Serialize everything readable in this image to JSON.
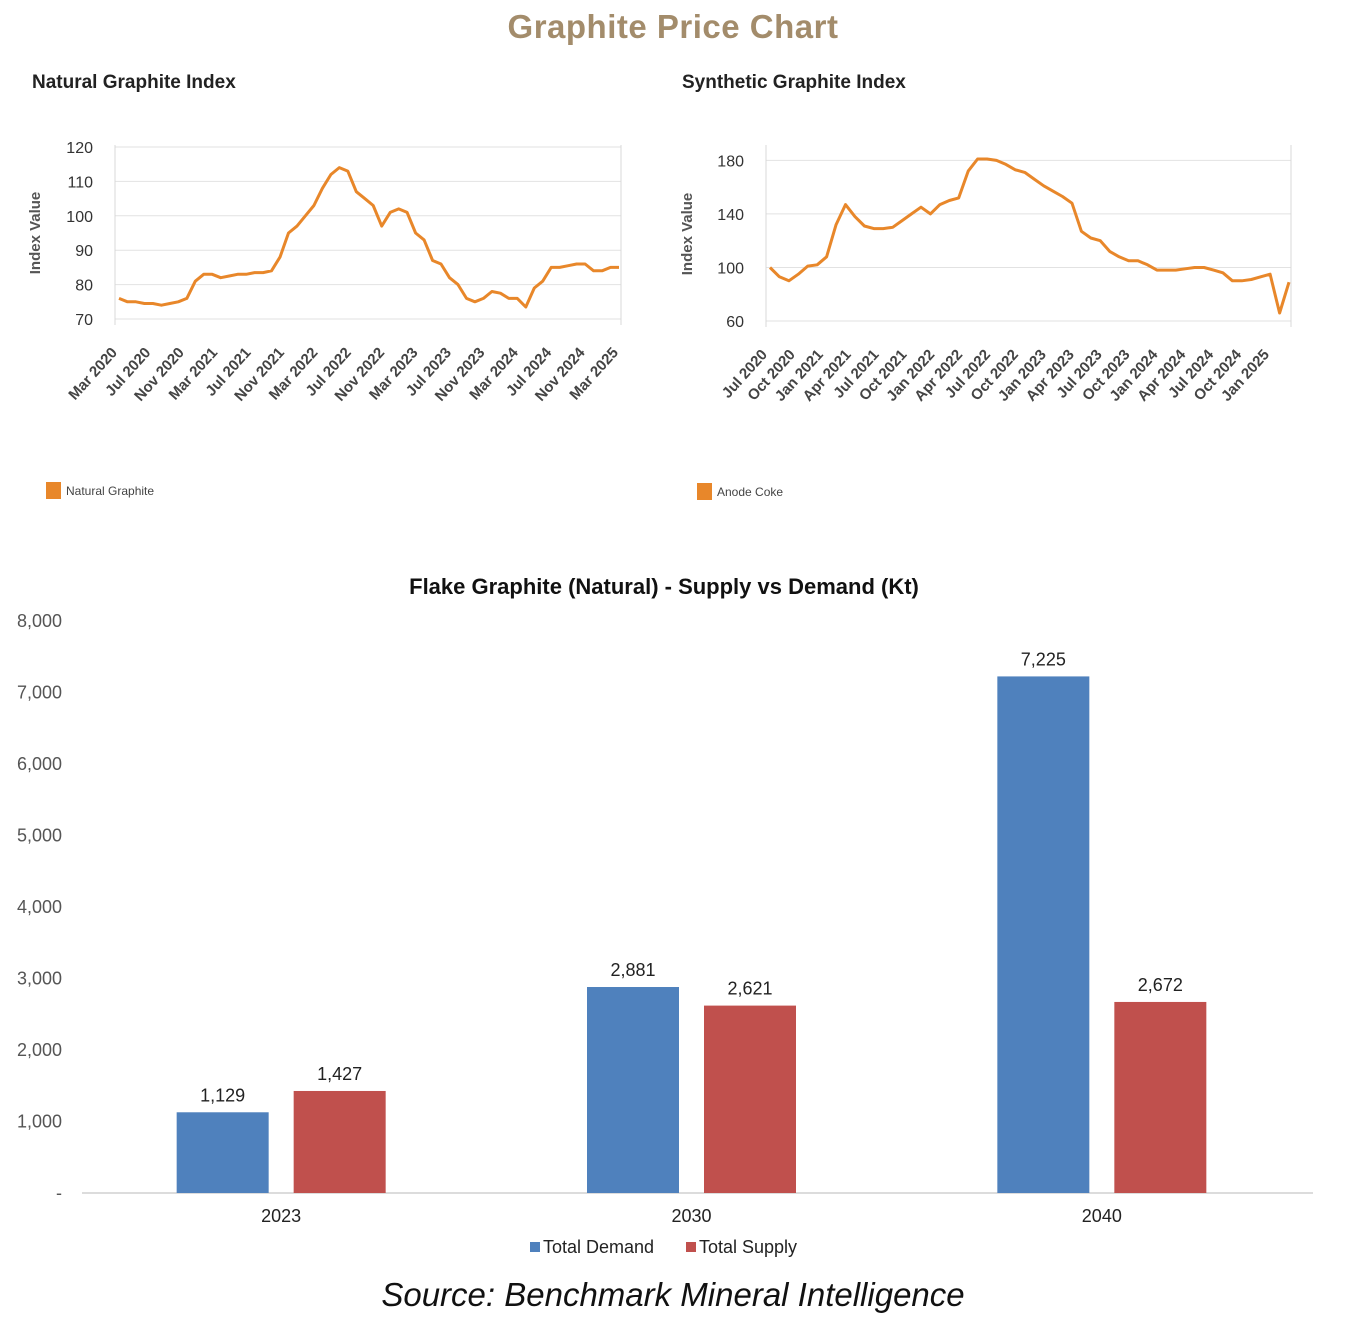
{
  "page": {
    "title": "Graphite Price Chart",
    "source": "Source: Benchmark Mineral Intelligence"
  },
  "colors": {
    "title": "#a38c6b",
    "line": "#e8872a",
    "demand": "#4f81bd",
    "supply": "#c0504d",
    "grid": "#e2e2e2"
  },
  "chart_data": [
    {
      "type": "line",
      "title": "Natural Graphite Index",
      "ylabel": "Index Value",
      "ylim": [
        70,
        120
      ],
      "yticks": [
        120,
        110,
        100,
        90,
        80,
        70
      ],
      "tick_labels": [
        "Mar 2020",
        "Jul 2020",
        "Nov 2020",
        "Mar 2021",
        "Jul 2021",
        "Nov 2021",
        "Mar 2022",
        "Jul 2022",
        "Nov 2022",
        "Mar 2023",
        "Jul 2023",
        "Nov 2023",
        "Mar 2024",
        "Jul 2024",
        "Nov 2024",
        "Mar 2025"
      ],
      "series": [
        {
          "name": "Natural Graphite",
          "values": [
            76,
            75,
            75,
            74.5,
            74.5,
            74,
            74.5,
            75,
            76,
            81,
            83,
            83,
            82,
            82.5,
            83,
            83,
            83.5,
            83.5,
            84,
            88,
            95,
            97,
            100,
            103,
            108,
            112,
            114,
            113,
            107,
            105,
            103,
            97,
            101,
            102,
            101,
            95,
            93,
            87,
            86,
            82,
            80,
            76,
            75,
            76,
            78,
            77.5,
            76,
            76,
            73.5,
            79,
            81,
            85,
            85,
            85.5,
            86,
            86,
            84,
            84,
            85,
            85
          ]
        }
      ],
      "legend": [
        {
          "label": "Natural Graphite"
        }
      ]
    },
    {
      "type": "line",
      "title": "Synthetic Graphite Index",
      "ylabel": "Index Value",
      "ylim": [
        60,
        190
      ],
      "yticks": [
        180,
        140,
        100,
        60
      ],
      "tick_labels": [
        "Jul 2020",
        "Oct 2020",
        "Jan 2021",
        "Apr 2021",
        "Jul 2021",
        "Oct 2021",
        "Jan 2022",
        "Apr 2022",
        "Jul 2022",
        "Oct 2022",
        "Jan 2023",
        "Apr 2023",
        "Jul 2023",
        "Oct 2023",
        "Jan 2024",
        "Apr 2024",
        "Jul 2024",
        "Oct 2024",
        "Jan 2025"
      ],
      "series": [
        {
          "name": "Anode Coke",
          "values": [
            100,
            93,
            90,
            95,
            101,
            102,
            108,
            132,
            147,
            138,
            131,
            129,
            129,
            130,
            135,
            140,
            145,
            140,
            147,
            150,
            152,
            172,
            181,
            181,
            180,
            177,
            173,
            171,
            166,
            161,
            157,
            153,
            148,
            127,
            122,
            120,
            112,
            108,
            105,
            105,
            102,
            98,
            98,
            98,
            99,
            100,
            100,
            98,
            96,
            90,
            90,
            91,
            93,
            95,
            66,
            89
          ]
        }
      ],
      "legend": [
        {
          "label": "Anode Coke"
        }
      ]
    },
    {
      "type": "bar",
      "title": "Flake Graphite (Natural) - Supply vs Demand (Kt)",
      "categories": [
        "2023",
        "2030",
        "2040"
      ],
      "ylim": [
        0,
        8000
      ],
      "ytick_labels": [
        "8,000",
        "7,000",
        "6,000",
        "5,000",
        "4,000",
        "3,000",
        "2,000",
        "1,000",
        "-"
      ],
      "series": [
        {
          "name": "Total Demand",
          "values": [
            1129,
            2881,
            7225
          ],
          "labels": [
            "1,129",
            "2,881",
            "7,225"
          ]
        },
        {
          "name": "Total Supply",
          "values": [
            1427,
            2621,
            2672
          ],
          "labels": [
            "1,427",
            "2,621",
            "2,672"
          ]
        }
      ]
    }
  ]
}
